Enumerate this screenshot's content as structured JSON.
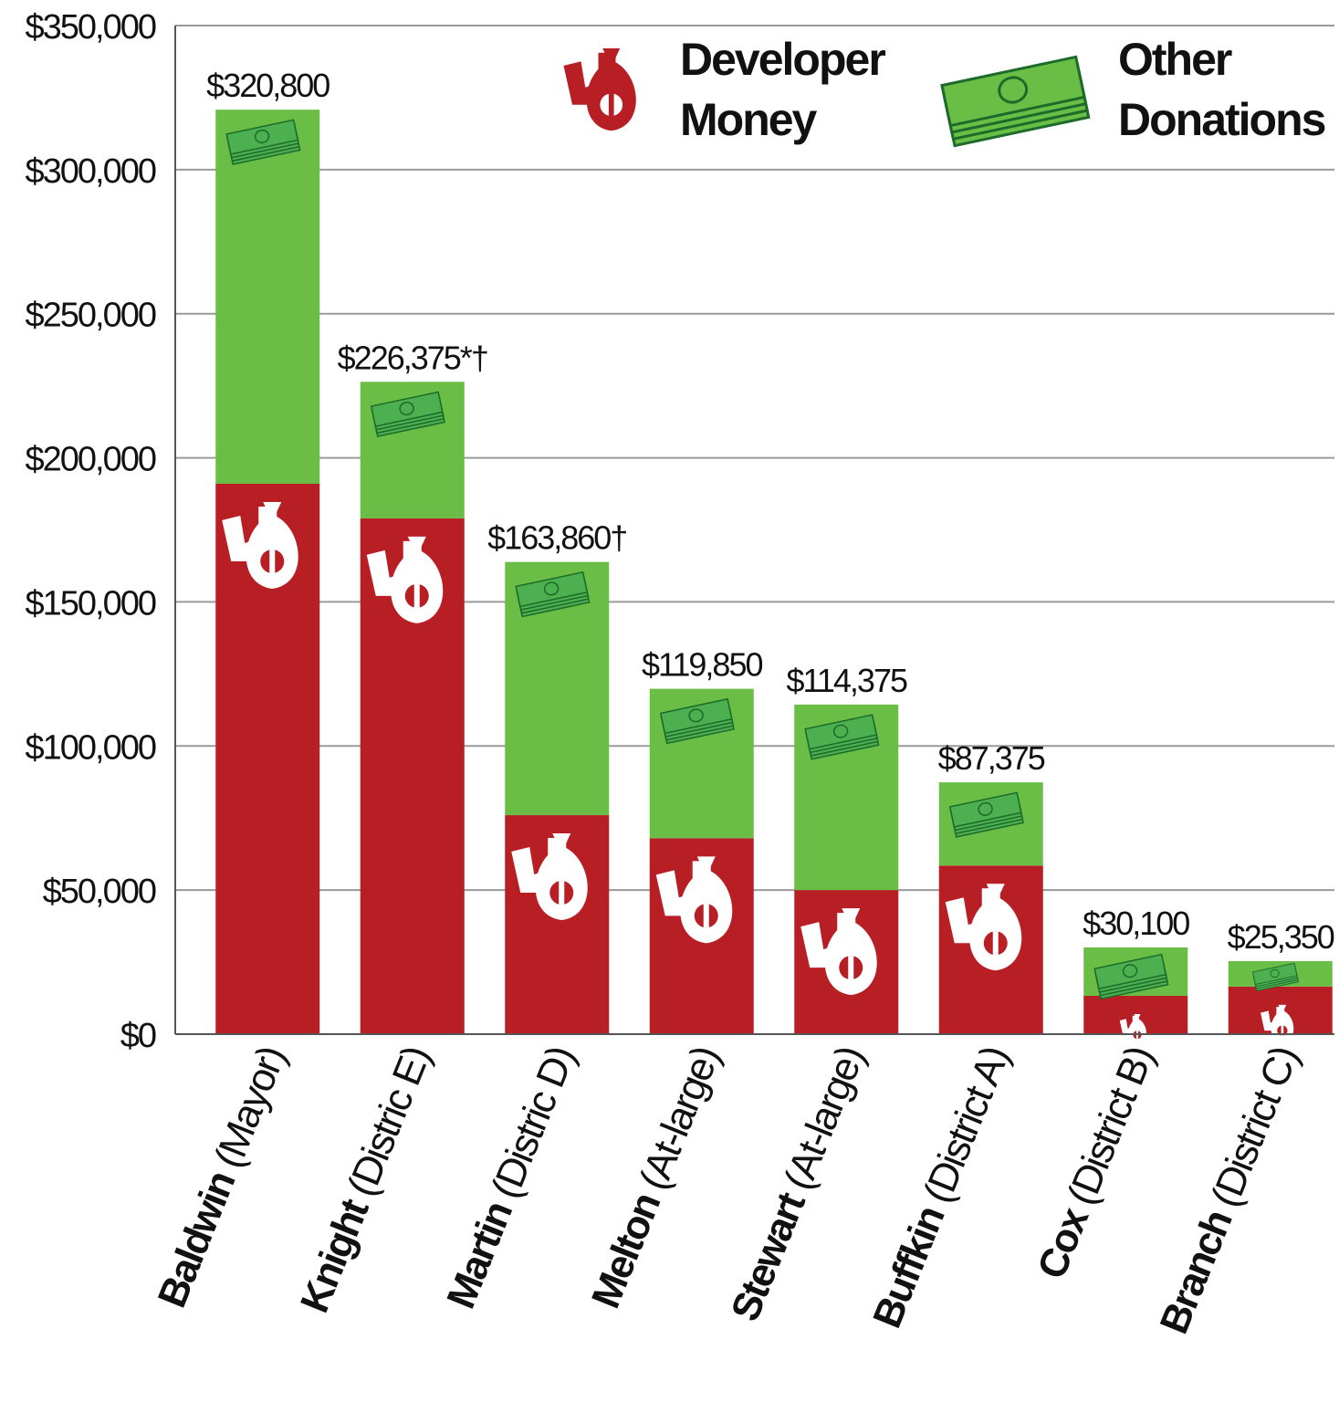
{
  "chart_data": {
    "type": "stacked_bar",
    "categories": [
      {
        "name": "Baldwin",
        "detail": "(Mayor)"
      },
      {
        "name": "Knight",
        "detail": "(Distric E)"
      },
      {
        "name": "Martin",
        "detail": "(Distric D)"
      },
      {
        "name": "Melton",
        "detail": "(At-large)"
      },
      {
        "name": "Stewart",
        "detail": "(At-large)"
      },
      {
        "name": "Buffkin",
        "detail": "(District A)"
      },
      {
        "name": "Cox",
        "detail": "(District B)"
      },
      {
        "name": "Branch",
        "detail": "(District C)"
      }
    ],
    "series": [
      {
        "name": "Developer Money",
        "color": "#b81f25",
        "values": [
          191000,
          179000,
          76000,
          68000,
          50000,
          58500,
          13300,
          16500
        ]
      },
      {
        "name": "Other Donations",
        "color": "#6abd45",
        "values": [
          129800,
          47375,
          87860,
          51850,
          64375,
          28875,
          16800,
          8850
        ]
      }
    ],
    "annotations": [
      "$320,800",
      "$226,375*†",
      "$163,860†",
      "$119,850",
      "$114,375",
      "$87,375",
      "$30,100",
      "$25,350"
    ],
    "ylim": [
      0,
      350000
    ],
    "yticks": [
      {
        "value": 0,
        "label": "$0"
      },
      {
        "value": 50000,
        "label": "$50,000"
      },
      {
        "value": 100000,
        "label": "$100,000"
      },
      {
        "value": 150000,
        "label": "$150,000"
      },
      {
        "value": 200000,
        "label": "$200,000"
      },
      {
        "value": 250000,
        "label": "$250,000"
      },
      {
        "value": 300000,
        "label": "$300,000"
      },
      {
        "value": 350000,
        "label": "$350,000"
      }
    ],
    "grid": true
  }
}
